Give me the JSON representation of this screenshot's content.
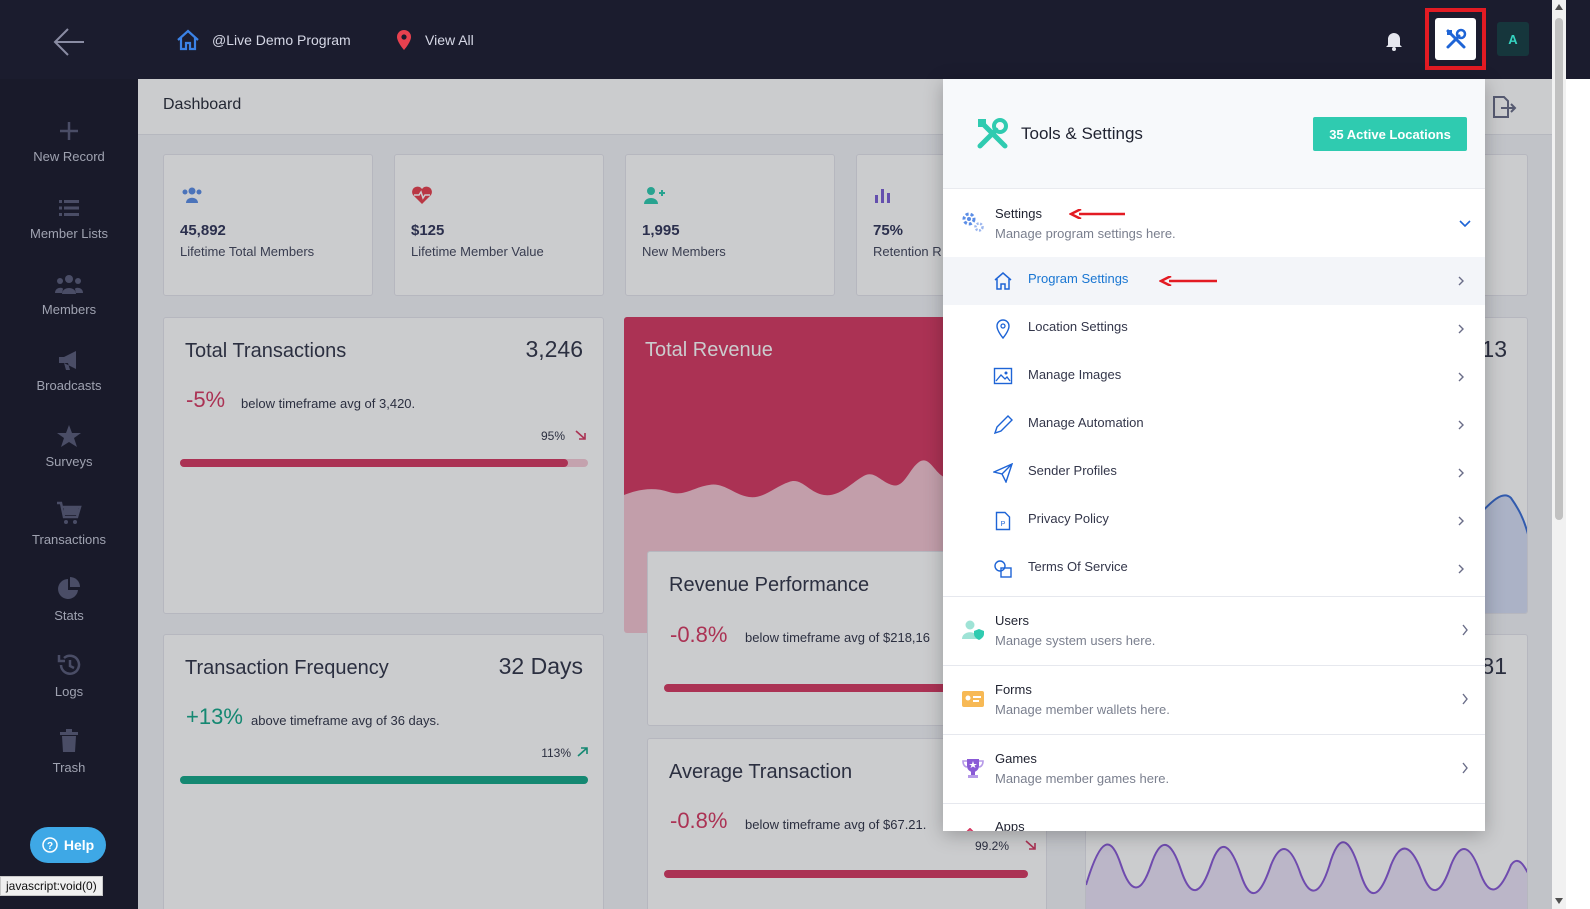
{
  "topbar": {
    "program_name": "@Live Demo Program",
    "view_all": "View All",
    "avatar_initial": "A"
  },
  "sidebar": {
    "items": [
      {
        "label": "New Record",
        "icon": "plus-icon"
      },
      {
        "label": "Member Lists",
        "icon": "list-icon"
      },
      {
        "label": "Members",
        "icon": "members-icon"
      },
      {
        "label": "Broadcasts",
        "icon": "megaphone-icon"
      },
      {
        "label": "Surveys",
        "icon": "star-icon"
      },
      {
        "label": "Transactions",
        "icon": "cart-icon"
      },
      {
        "label": "Stats",
        "icon": "pie-chart-icon"
      },
      {
        "label": "Logs",
        "icon": "history-icon"
      },
      {
        "label": "Trash",
        "icon": "trash-icon"
      }
    ],
    "help_label": "Help"
  },
  "status_bar": {
    "url": "javascript:void(0)"
  },
  "dashboard": {
    "title": "Dashboard",
    "stats": [
      {
        "value": "45,892",
        "label": "Lifetime Total Members"
      },
      {
        "value": "$125",
        "label": "Lifetime Member Value"
      },
      {
        "value": "1,995",
        "label": "New Members"
      },
      {
        "value": "75%",
        "label": "Retention R"
      }
    ],
    "total_transactions": {
      "title": "Total Transactions",
      "value": "3,246",
      "change": "-5%",
      "description": "below timeframe avg of 3,420.",
      "percent_label": "95%",
      "progress": 0.95
    },
    "transaction_frequency": {
      "title": "Transaction Frequency",
      "value": "32 Days",
      "change": "+13%",
      "description": "above timeframe avg of 36 days.",
      "percent_label": "113%",
      "progress": 1.0
    },
    "total_revenue": {
      "title": "Total Revenue"
    },
    "revenue_performance": {
      "title": "Revenue Performance",
      "change": "-0.8%",
      "description": "below timeframe avg of $218,16"
    },
    "average_transaction": {
      "title": "Average Transaction",
      "change": "-0.8%",
      "description": "below timeframe avg of $67.21.",
      "percent_label": "99.2%"
    },
    "right_partial_values": [
      "13",
      "81"
    ]
  },
  "tools_panel": {
    "title": "Tools & Settings",
    "active_locations": "35 Active Locations",
    "settings": {
      "title": "Settings",
      "subtitle": "Manage program settings here.",
      "items": [
        {
          "label": "Program Settings",
          "icon": "home-icon"
        },
        {
          "label": "Location Settings",
          "icon": "location-pin-icon"
        },
        {
          "label": "Manage Images",
          "icon": "image-icon"
        },
        {
          "label": "Manage Automation",
          "icon": "pencil-icon"
        },
        {
          "label": "Sender Profiles",
          "icon": "paper-plane-icon"
        },
        {
          "label": "Privacy Policy",
          "icon": "document-icon"
        },
        {
          "label": "Terms Of Service",
          "icon": "shapes-icon"
        }
      ]
    },
    "users": {
      "title": "Users",
      "subtitle": "Manage system users here."
    },
    "forms": {
      "title": "Forms",
      "subtitle": "Manage member wallets here."
    },
    "games": {
      "title": "Games",
      "subtitle": "Manage member games here."
    },
    "apps": {
      "title": "Apps"
    }
  },
  "colors": {
    "sidebar_bg": "#1b1c2e",
    "accent_red": "#d63a63",
    "accent_teal": "#2fcbb0",
    "link_blue": "#1976d2",
    "annotation_red": "#e31b23"
  }
}
